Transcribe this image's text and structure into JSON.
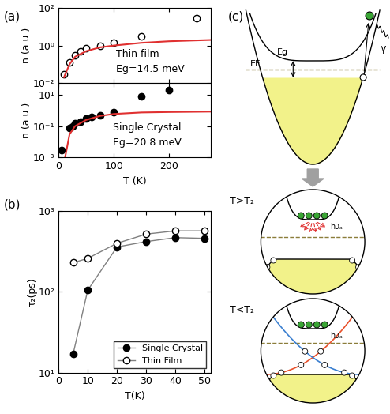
{
  "panel_labels": [
    "(a)",
    "(b)",
    "(c)"
  ],
  "chart_data": [
    {
      "type": "scatter",
      "ylabel": "n (a.u.)",
      "annotations": [
        "Thin film",
        "Eg=14.5 meV"
      ],
      "log": "y",
      "tick_labels": "y",
      "xlim": [
        0,
        275
      ],
      "xticks": [
        0,
        100,
        200
      ],
      "ylim": [
        0.01,
        100
      ],
      "yticks": [
        {
          "value": 0.01,
          "label": "10⁻²"
        },
        {
          "value": 1,
          "label": "10⁰"
        },
        {
          "value": 100,
          "label": "10²"
        }
      ],
      "series": [
        {
          "type": "scatter",
          "marker": "open_circle",
          "color": "#000000",
          "x": [
            10,
            20,
            30,
            40,
            50,
            75,
            100,
            150,
            250
          ],
          "values": [
            0.03,
            0.12,
            0.3,
            0.5,
            0.7,
            1.0,
            1.4,
            3,
            30
          ]
        },
        {
          "type": "line",
          "line_style": "solid",
          "color": "#e03030",
          "x": [
            10,
            20,
            30,
            50,
            75,
            100,
            150,
            200,
            275
          ],
          "values": [
            0.02,
            0.1,
            0.25,
            0.5,
            0.8,
            1.0,
            1.4,
            1.7,
            2.0
          ]
        }
      ]
    },
    {
      "type": "scatter",
      "xlabel": "T (K)",
      "ylabel": "n (a.u.)",
      "annotations": [
        "Single Crystal",
        "Eg=20.8 meV"
      ],
      "log": "y",
      "xlim": [
        0,
        275
      ],
      "xticks": [
        0,
        100,
        200
      ],
      "ylim": [
        0.001,
        60
      ],
      "yticks": [
        {
          "value": 0.001,
          "label": "10⁻³"
        },
        {
          "value": 0.1,
          "label": "10⁻¹"
        },
        {
          "value": 10,
          "label": "10¹"
        }
      ],
      "series": [
        {
          "type": "scatter",
          "marker": "filled_circle",
          "color": "#000000",
          "x": [
            5,
            20,
            25,
            30,
            40,
            50,
            60,
            75,
            100,
            150,
            200
          ],
          "values": [
            0.003,
            0.08,
            0.1,
            0.15,
            0.2,
            0.3,
            0.4,
            0.5,
            0.8,
            8,
            20
          ]
        },
        {
          "type": "line",
          "line_style": "solid",
          "color": "#e03030",
          "x": [
            12,
            20,
            30,
            50,
            75,
            100,
            150,
            200,
            275
          ],
          "values": [
            0.001,
            0.03,
            0.1,
            0.25,
            0.45,
            0.6,
            0.75,
            0.8,
            0.85
          ]
        }
      ]
    },
    {
      "type": "line",
      "xlabel": "T(K)",
      "ylabel": "τ₂(ps)",
      "log": "y",
      "legend": "lower right",
      "xlim": [
        0,
        52
      ],
      "xticks": [
        0,
        10,
        20,
        30,
        40,
        50
      ],
      "ylim": [
        10,
        1000
      ],
      "yticks": [
        {
          "value": 10,
          "label": "10¹"
        },
        {
          "value": 100,
          "label": "10²"
        },
        {
          "value": 1000,
          "label": "10³"
        }
      ],
      "series": [
        {
          "name": "Single Crystal",
          "marker": "filled_circle",
          "color": "#000000",
          "x": [
            5,
            10,
            20,
            30,
            40,
            50
          ],
          "values": [
            17,
            105,
            360,
            420,
            470,
            460
          ]
        },
        {
          "name": "Thin Film",
          "marker": "open_circle",
          "color": "#000000",
          "x": [
            5,
            10,
            20,
            30,
            40,
            50
          ],
          "values": [
            230,
            260,
            400,
            520,
            570,
            570
          ]
        }
      ]
    }
  ],
  "diagram": {
    "fermi_level": "EF",
    "gap": "Eg",
    "photon": "γ",
    "high_T": "T>T₂",
    "low_T": "T<T₂",
    "phonon": "hυₐ"
  }
}
